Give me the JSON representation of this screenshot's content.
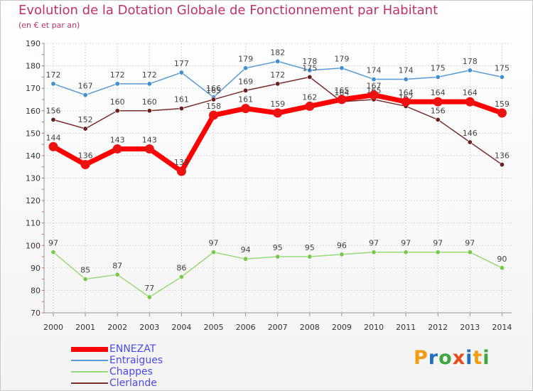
{
  "title": "Evolution de la Dotation Globale de Fonctionnement par Habitant",
  "subtitle": "(en € et par an)",
  "logo": {
    "letters": [
      "P",
      "r",
      "o",
      "x",
      "i",
      "t",
      "i"
    ],
    "colors": [
      "#f39c12",
      "#1f6fc6",
      "#3fa63f",
      "#e74c1c",
      "#1f6fc6",
      "#f39c12",
      "#3fa63f"
    ]
  },
  "chart_data": {
    "type": "line",
    "x": [
      "2000",
      "2001",
      "2002",
      "2003",
      "2004",
      "2005",
      "2006",
      "2007",
      "2008",
      "2009",
      "2010",
      "2011",
      "2012",
      "2013",
      "2014"
    ],
    "ylim": [
      70,
      190
    ],
    "yticks": [
      "70",
      "80",
      "90",
      "100",
      "110",
      "120",
      "130",
      "140",
      "150",
      "160",
      "170",
      "180",
      "190"
    ],
    "grid": true,
    "legend_position": "bottom-left",
    "series": [
      {
        "name": "Entraigues",
        "color": "#5b9bd5",
        "marker": "#3f8fd2",
        "values": [
          172,
          167,
          172,
          172,
          177,
          166,
          179,
          182,
          178,
          179,
          174,
          174,
          175,
          178,
          175
        ],
        "labels": [
          "172",
          "167",
          "172",
          "172",
          "177",
          "166",
          "179",
          "182",
          "178",
          "179",
          "174",
          "174",
          "175",
          "178",
          "175"
        ]
      },
      {
        "name": "Clerlande",
        "color": "#7a2e2e",
        "marker": "#6b1e1e",
        "values": [
          156,
          152,
          160,
          160,
          161,
          165,
          169,
          172,
          175,
          164,
          165,
          162,
          156,
          146,
          136
        ],
        "labels": [
          "156",
          "152",
          "160",
          "160",
          "161",
          "165",
          "169",
          "172",
          "175",
          "164",
          "165",
          "162",
          "156",
          "146",
          "136"
        ]
      },
      {
        "name": "Chappes",
        "color": "#99d97a",
        "marker": "#78c94a",
        "values": [
          97,
          85,
          87,
          77,
          86,
          97,
          94,
          95,
          95,
          96,
          97,
          97,
          97,
          97,
          90
        ],
        "labels": [
          "97",
          "85",
          "87",
          "77",
          "86",
          "97",
          "94",
          "95",
          "95",
          "96",
          "97",
          "97",
          "97",
          "97",
          "90"
        ]
      },
      {
        "name": "ENNEZAT",
        "color": "#ff0000",
        "marker": "#ee1111",
        "values": [
          144,
          136,
          143,
          143,
          133,
          158,
          161,
          159,
          162,
          165,
          167,
          164,
          164,
          164,
          159
        ],
        "labels": [
          "144",
          "136",
          "143",
          "143",
          "133",
          "158",
          "161",
          "159",
          "162",
          "165",
          "167",
          "164",
          "164",
          "164",
          "159"
        ]
      }
    ],
    "legend": [
      {
        "name": "ENNEZAT",
        "color": "#ff0000",
        "thickness": 7
      },
      {
        "name": "Entraigues",
        "color": "#5b9bd5",
        "thickness": 2
      },
      {
        "name": "Chappes",
        "color": "#99d97a",
        "thickness": 2
      },
      {
        "name": "Clerlande",
        "color": "#7a2e2e",
        "thickness": 2
      }
    ]
  }
}
